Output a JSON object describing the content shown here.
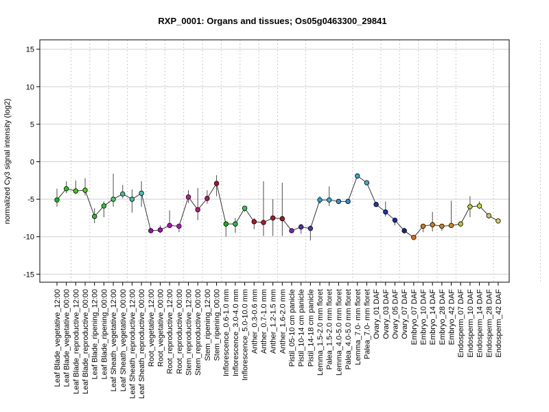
{
  "chart_data": {
    "type": "line",
    "title": "RXP_0001: Organs and tissues; Os05g0463300_29841",
    "ylabel": "normalized Cy3 signal intensity (log2)",
    "xlabel": "",
    "ylim": [
      -16,
      16.2
    ],
    "yticks": [
      -15,
      -10,
      -5,
      0,
      5,
      10,
      15
    ],
    "grid": "horizontal",
    "group_separators_after_index": [
      1,
      3,
      5,
      7,
      9,
      11,
      13,
      15,
      17,
      19,
      21,
      23,
      26,
      31,
      34,
      36,
      38,
      40,
      42,
      46,
      51,
      55,
      59
    ],
    "categories": [
      "Leaf Blade_vegetative_12:00",
      "Leaf Blade_vegetative_00:00",
      "Leaf Blade_reproductive_12:00",
      "Leaf Blade_reproductive_00:00",
      "Leaf Blade_ripening_12:00",
      "Leaf Blade_ripening_00:00",
      "Leaf Sheath_vegetative_12:00",
      "Leaf Sheath_vegetative_00:00",
      "Leaf Sheath_reproductive_12:00",
      "Leaf Sheath_reproductive_00:00",
      "Root_vegetative_12:00",
      "Root_vegetative_00:00",
      "Root_reproductive_12:00",
      "Root_reproductive_00:00",
      "Stem_reproductive_12:00",
      "Stem_reproductive_00:00",
      "Stem_ripening_12:00",
      "Stem_ripening_00:00",
      "Inflorescence_0.6-1.0 mm",
      "Inflorescence_3.0-4.0 mm",
      "Inflorescence_5.0-10.0 mm",
      "Anther_0.3-0.6 mm",
      "Anther_0.7-1.0 mm",
      "Anther_1.2-1.5 mm",
      "Anther_1.6-2.0 mm",
      "Pistil_05-10 cm panicle",
      "Pistil_10-14 cm panicle",
      "Pistil_14-18 cm panicle",
      "Lemma_1.5-2.0 mm floret",
      "Palea_1.5-2.0 mm floret",
      "Lemma_4.0-5.0 mm floret",
      "Palea_4.0-5.0 mm floret",
      "Lemma_7.0- mm floret",
      "Palea_7.0- mm floret",
      "Ovary_01 DAF",
      "Ovary_03 DAF",
      "Ovary_05 DAF",
      "Ovary_07 DAF",
      "Embryo_07 DAF",
      "Embryo_10 DAF",
      "Embryo_14 DAF",
      "Embryo_28 DAF",
      "Embryo_42 DAF",
      "Endosperm_07 DAF",
      "Endosperm_10 DAF",
      "Endosperm_14 DAF",
      "Endosperm_28 DAF",
      "Endosperm_42 DAF"
    ],
    "values": [
      -5.1,
      -3.6,
      -3.9,
      -3.8,
      -7.3,
      -5.9,
      -5.0,
      -4.3,
      -5.0,
      -4.2,
      -9.2,
      -9.1,
      -8.5,
      -8.6,
      -4.7,
      -6.4,
      -4.9,
      -2.9,
      -8.3,
      -8.3,
      -6.2,
      -8.0,
      -8.1,
      -7.5,
      -7.6,
      -9.2,
      -8.7,
      -8.9,
      -5.1,
      -5.1,
      -5.3,
      -5.3,
      -1.9,
      -2.8,
      -5.7,
      -6.7,
      -7.8,
      -9.2,
      -10.1,
      -8.6,
      -8.4,
      -8.6,
      -8.5,
      -8.3,
      -6.0,
      -5.9,
      -7.2,
      -7.9
    ],
    "errors": [
      [
        -6.0,
        -3.6
      ],
      [
        -4.2,
        -2.6
      ],
      [
        -4.3,
        -2.5
      ],
      [
        -4.5,
        -2.2
      ],
      [
        -8.2,
        -6.2
      ],
      [
        -7.4,
        -5.3
      ],
      [
        -6.0,
        -1.6
      ],
      [
        -4.9,
        -3.1
      ],
      [
        -6.8,
        -3.7
      ],
      [
        -6.0,
        -2.6
      ],
      [
        -9.2,
        -9.2
      ],
      [
        -9.5,
        -8.5
      ],
      [
        -8.8,
        -6.5
      ],
      [
        -9.4,
        -8.5
      ],
      [
        -5.5,
        -3.8
      ],
      [
        -7.8,
        -3.5
      ],
      [
        -5.6,
        -3.8
      ],
      [
        -4.6,
        -1.8
      ],
      [
        -10.0,
        -8.3
      ],
      [
        -9.5,
        -7.5
      ],
      [
        -6.7,
        -5.9
      ],
      [
        -9.0,
        -7.5
      ],
      [
        -9.9,
        -2.6
      ],
      [
        -9.9,
        -5.0
      ],
      [
        -9.9,
        -2.8
      ],
      [
        -9.2,
        -9.2
      ],
      [
        -9.6,
        -8.3
      ],
      [
        -10.5,
        -8.5
      ],
      [
        -5.6,
        -4.6
      ],
      [
        -5.9,
        -3.3
      ],
      [
        -5.6,
        -5.2
      ],
      [
        -5.4,
        -5.2
      ],
      [
        -2.2,
        -1.7
      ],
      [
        -3.1,
        -2.5
      ],
      [
        -6.0,
        -5.5
      ],
      [
        -7.3,
        -5.3
      ],
      [
        -8.5,
        -7.5
      ],
      [
        -9.6,
        -8.8
      ],
      [
        -10.3,
        -10.0
      ],
      [
        -9.4,
        -8.4
      ],
      [
        -9.3,
        -6.7
      ],
      [
        -9.2,
        -8.3
      ],
      [
        -8.8,
        -5.2
      ],
      [
        -8.6,
        -8.1
      ],
      [
        -7.4,
        -4.6
      ],
      [
        -6.3,
        -5.3
      ],
      [
        -7.6,
        -6.9
      ],
      [
        -8.2,
        -7.7
      ]
    ],
    "colors": [
      "#00c800",
      "#1ed200",
      "#3cd200",
      "#4ed600",
      "#24c028",
      "#2cc838",
      "#44cc66",
      "#3ac888",
      "#33c8aa",
      "#33ccc0",
      "#a000c0",
      "#b400cc",
      "#c000d0",
      "#c800d4",
      "#d0189c",
      "#c0187c",
      "#c0106c",
      "#c00830",
      "#00c000",
      "#18c830",
      "#30cc48",
      "#c80830",
      "#c01028",
      "#b01824",
      "#b01424",
      "#8020c0",
      "#6028c0",
      "#5030c0",
      "#20a8d0",
      "#30b0d8",
      "#3098d0",
      "#3090d0",
      "#30a8e0",
      "#40a8dc",
      "#1838c0",
      "#1830b8",
      "#1828b0",
      "#1820a0",
      "#e07000",
      "#e07800",
      "#e07800",
      "#d88000",
      "#d88800",
      "#c8c818",
      "#b8d020",
      "#c8d830",
      "#d8c850",
      "#d8d040"
    ]
  }
}
